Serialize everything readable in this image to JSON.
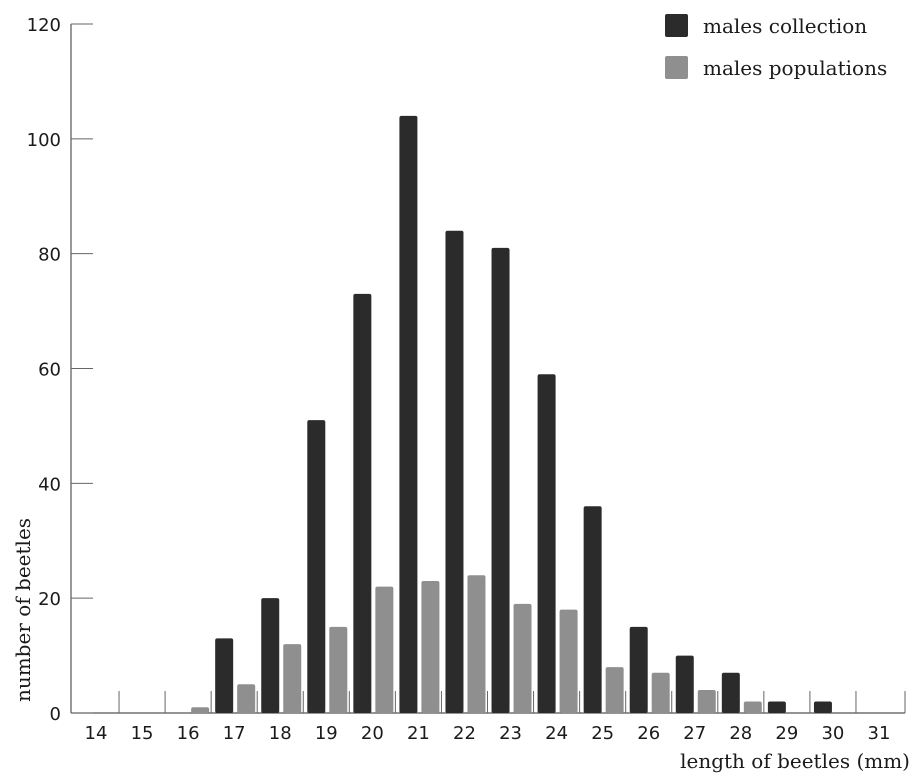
{
  "chart_data": {
    "type": "bar",
    "title": "",
    "xlabel": "length of beetles (mm)",
    "ylabel": "number of beetles",
    "ylim": [
      0,
      120
    ],
    "yticks": [
      0,
      20,
      40,
      60,
      80,
      100,
      120
    ],
    "grid": false,
    "legend_position": "top-right",
    "categories": [
      "14",
      "15",
      "16",
      "17",
      "18",
      "19",
      "20",
      "21",
      "22",
      "23",
      "24",
      "25",
      "26",
      "27",
      "28",
      "29",
      "30",
      "31"
    ],
    "series": [
      {
        "name": "males collection",
        "color": "#2b2b2b",
        "values": [
          0,
          0,
          0,
          13,
          20,
          51,
          73,
          104,
          84,
          81,
          59,
          36,
          15,
          10,
          7,
          2,
          2,
          0
        ]
      },
      {
        "name": "males populations",
        "color": "#8f8f8f",
        "values": [
          0,
          0,
          1,
          5,
          12,
          15,
          22,
          23,
          24,
          19,
          18,
          8,
          7,
          4,
          2,
          0,
          0,
          0
        ]
      }
    ]
  }
}
